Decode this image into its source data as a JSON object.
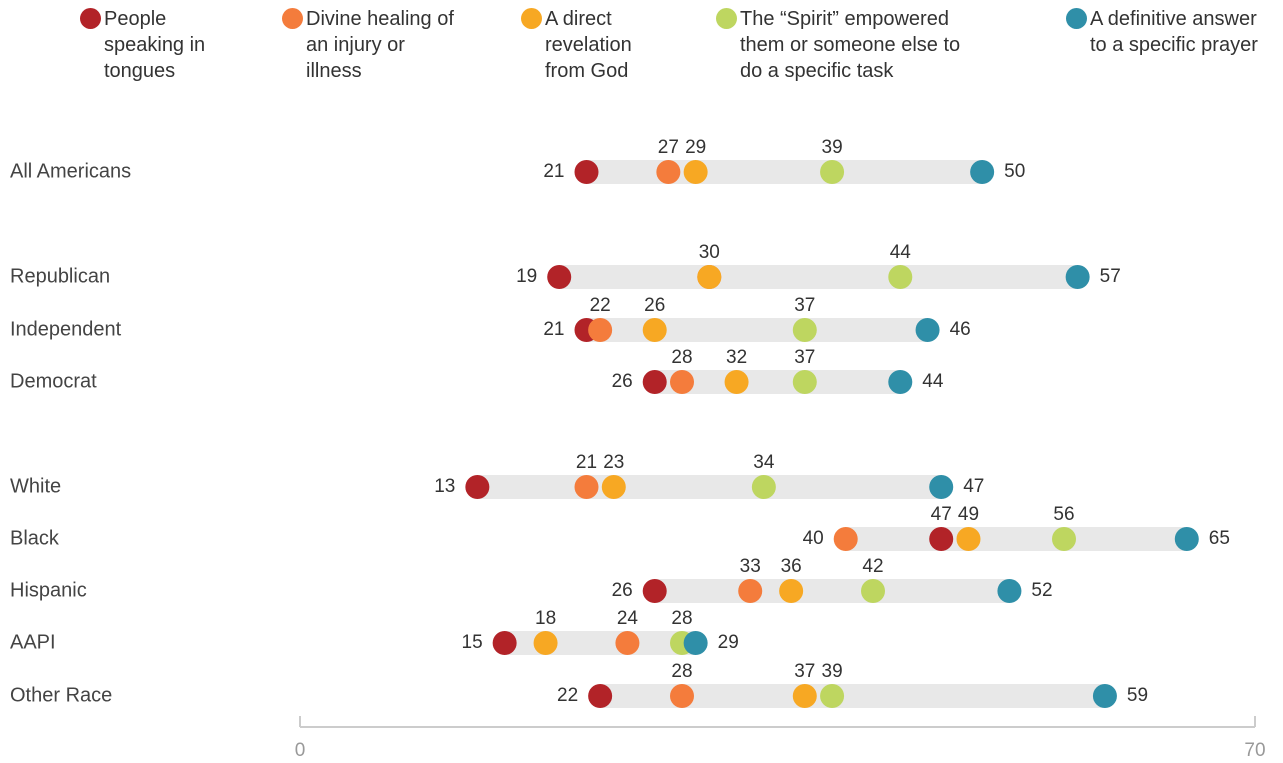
{
  "chart_data": {
    "type": "dot",
    "categories": [
      "All Americans",
      "Republican",
      "Independent",
      "Democrat",
      "White",
      "Black",
      "Hispanic",
      "AAPI",
      "Other Race"
    ],
    "series": [
      {
        "name": "People speaking in tongues",
        "color": "#b22328",
        "values": [
          21,
          19,
          21,
          26,
          13,
          47,
          26,
          15,
          22
        ]
      },
      {
        "name": "Divine healing of an injury or illness",
        "color": "#f47c3c",
        "values": [
          27,
          30,
          22,
          28,
          21,
          40,
          33,
          24,
          28
        ]
      },
      {
        "name": "A direct revelation from God",
        "color": "#f7a823",
        "values": [
          29,
          30,
          26,
          32,
          23,
          49,
          36,
          18,
          37
        ]
      },
      {
        "name": "The “Spirit”  empowered them or someone else to do a specific task",
        "color": "#bed660",
        "values": [
          39,
          44,
          37,
          37,
          34,
          56,
          42,
          28,
          39
        ]
      },
      {
        "name": "A definitive answer to a specific prayer",
        "color": "#2f8fa8",
        "values": [
          50,
          57,
          46,
          44,
          47,
          65,
          52,
          29,
          59
        ]
      }
    ],
    "xlim": [
      0,
      70
    ],
    "xticks": [
      0,
      70
    ]
  }
}
